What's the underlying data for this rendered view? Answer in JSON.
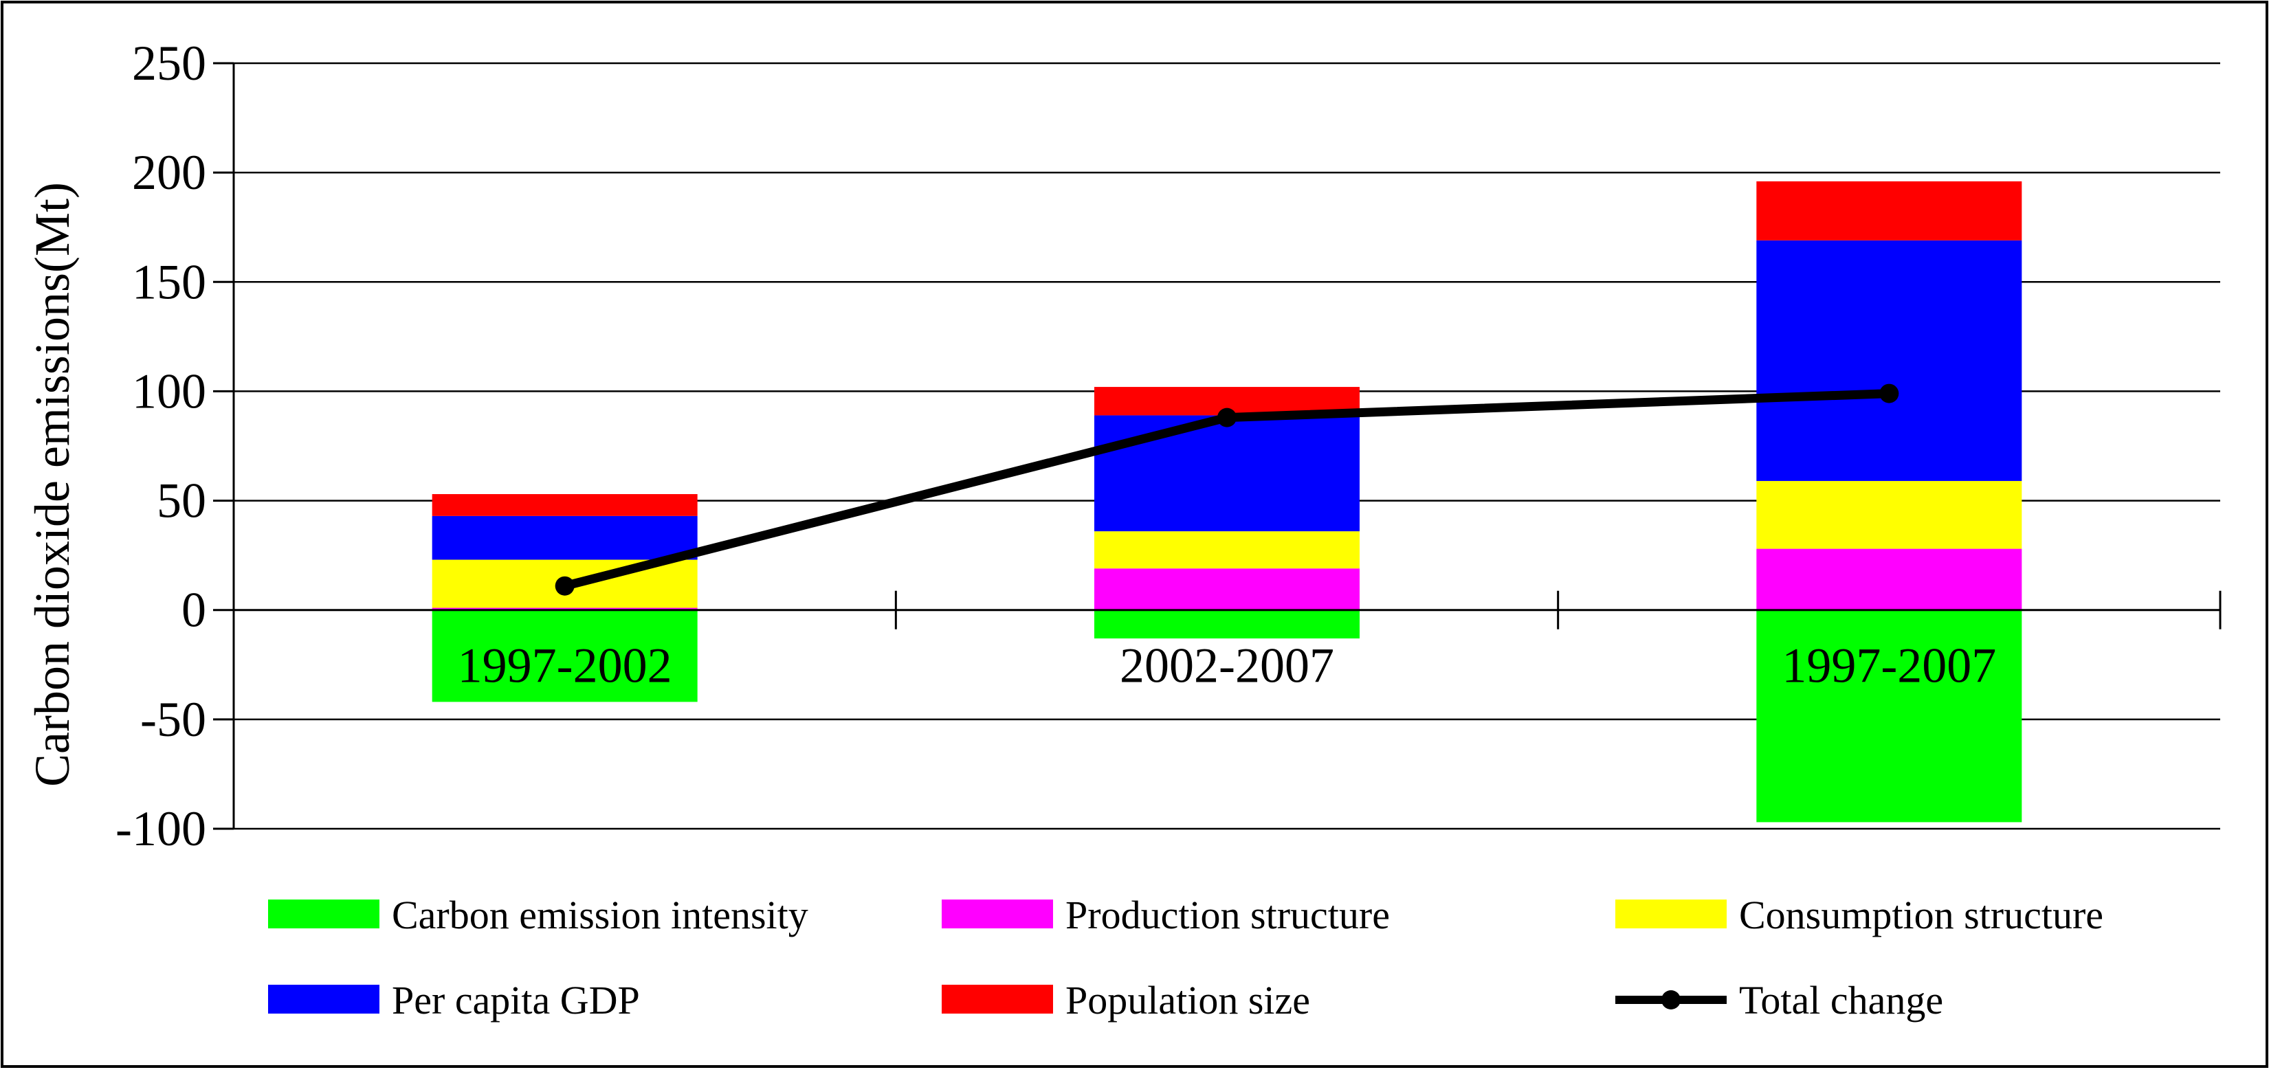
{
  "chart_data": {
    "type": "bar",
    "stacked": true,
    "title": "",
    "xlabel": "",
    "ylabel": "Carbon dioxide emissions(Mt)",
    "ylim": [
      -100,
      250
    ],
    "yticks": [
      "250",
      "200",
      "150",
      "100",
      "50",
      "0",
      "-50",
      "-100"
    ],
    "ytick_values": [
      250,
      200,
      150,
      100,
      50,
      0,
      -50,
      -100
    ],
    "grid": true,
    "legend_position": "bottom",
    "categories": [
      "1997-2002",
      "2002-2007",
      "1997-2007"
    ],
    "series": [
      {
        "name": "Carbon emission intensity",
        "color": "#00ff00",
        "values": [
          -42,
          -13,
          -97
        ]
      },
      {
        "name": "Production structure",
        "color": "#ff00ff",
        "values": [
          1,
          19,
          28
        ]
      },
      {
        "name": "Consumption structure",
        "color": "#ffff00",
        "values": [
          22,
          17,
          31
        ]
      },
      {
        "name": "Per capita GDP",
        "color": "#0000ff",
        "values": [
          20,
          53,
          110
        ]
      },
      {
        "name": "Population size",
        "color": "#ff0000",
        "values": [
          10,
          13,
          27
        ]
      }
    ],
    "line_series": {
      "name": "Total change",
      "color": "#000000",
      "values": [
        11,
        88,
        99
      ]
    }
  }
}
